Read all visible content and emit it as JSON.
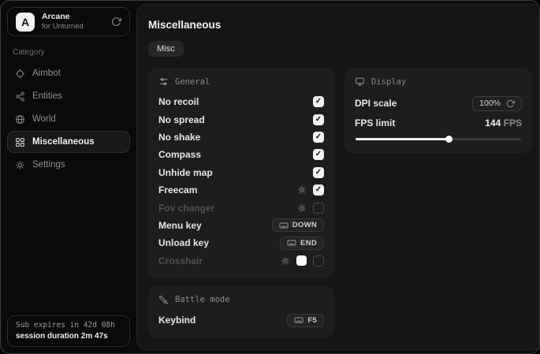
{
  "sidebar": {
    "logo": {
      "initial": "A",
      "title": "Arcane",
      "subtitle": "for Unturned"
    },
    "category_label": "Category",
    "items": [
      {
        "label": "Aimbot",
        "icon": "crosshair-icon",
        "active": false
      },
      {
        "label": "Entities",
        "icon": "entities-icon",
        "active": false
      },
      {
        "label": "World",
        "icon": "globe-icon",
        "active": false
      },
      {
        "label": "Miscellaneous",
        "icon": "grid-icon",
        "active": true
      },
      {
        "label": "Settings",
        "icon": "gear-icon",
        "active": false
      }
    ],
    "subscription": {
      "expires": "Sub expires in 42d 08h",
      "session": "session duration 2m 47s"
    }
  },
  "main": {
    "title": "Miscellaneous",
    "tabs": [
      {
        "label": "Misc",
        "active": true
      }
    ],
    "general": {
      "header": "General",
      "rows": [
        {
          "label": "No recoil",
          "control": "checkbox",
          "checked": true
        },
        {
          "label": "No spread",
          "control": "checkbox",
          "checked": true
        },
        {
          "label": "No shake",
          "control": "checkbox",
          "checked": true
        },
        {
          "label": "Compass",
          "control": "checkbox",
          "checked": true
        },
        {
          "label": "Unhide map",
          "control": "checkbox",
          "checked": true
        },
        {
          "label": "Freecam",
          "control": "checkbox",
          "checked": true,
          "has_settings": true
        },
        {
          "label": "Fov changer",
          "control": "checkbox",
          "checked": false,
          "has_settings": true,
          "disabled": true
        },
        {
          "label": "Menu key",
          "control": "keybind",
          "key": "DOWN"
        },
        {
          "label": "Unload key",
          "control": "keybind",
          "key": "END"
        },
        {
          "label": "Crosshair",
          "control": "checkbox",
          "checked": false,
          "has_settings": true,
          "disabled": true,
          "color_swatch": "#ffffff"
        }
      ]
    },
    "battle": {
      "header": "Battle mode",
      "rows": [
        {
          "label": "Keybind",
          "control": "keybind",
          "key": "F5"
        }
      ]
    },
    "display": {
      "header": "Display",
      "dpi": {
        "label": "DPI scale",
        "value": "100%"
      },
      "fps": {
        "label": "FPS limit",
        "value": "144",
        "unit": "FPS",
        "percent": 56
      }
    }
  },
  "colors": {
    "window_bg": "#0a0a0a",
    "card_bg": "#151515",
    "panel_bg": "#1d1d1d",
    "accent": "#f2f2f2",
    "text": "#e6e6e6",
    "muted": "#8a8a8a",
    "disabled": "#525252"
  }
}
